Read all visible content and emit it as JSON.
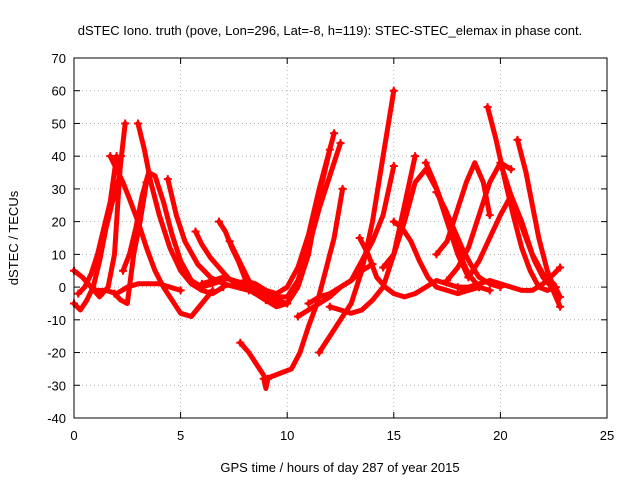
{
  "chart_data": {
    "type": "scatter",
    "title": "dSTEC Iono. truth (pove, Lon=296, Lat=-8, h=119): STEC-STEC_elemax in phase cont.",
    "xlabel": "GPS time / hours of day 287 of year 2015",
    "ylabel": "dSTEC  / TECUs",
    "xlim": [
      0,
      25
    ],
    "ylim": [
      -40,
      70
    ],
    "xticks": [
      0,
      5,
      10,
      15,
      20,
      25
    ],
    "yticks": [
      -40,
      -30,
      -20,
      -10,
      0,
      10,
      20,
      30,
      40,
      50,
      60,
      70
    ],
    "grid": true,
    "color": "#ff0000",
    "series": [
      {
        "x": [
          0.0,
          0.3,
          0.6,
          0.9,
          1.2,
          1.5,
          1.8,
          2.1,
          2.4
        ],
        "y": [
          -5,
          -7,
          -4,
          0,
          8,
          18,
          26,
          33,
          50
        ]
      },
      {
        "x": [
          0.2,
          0.5,
          0.8,
          1.1,
          1.4,
          1.7,
          2.0
        ],
        "y": [
          -2,
          0,
          4,
          10,
          18,
          26,
          40
        ]
      },
      {
        "x": [
          0.0,
          0.4,
          0.8,
          1.2,
          1.6,
          1.9,
          2.2
        ],
        "y": [
          5,
          3,
          0,
          -3,
          0,
          10,
          40
        ]
      },
      {
        "x": [
          1.7,
          2.0,
          2.3,
          2.6,
          3.0,
          3.4,
          3.8,
          4.2,
          4.6,
          5.0,
          5.5,
          6.0,
          6.5
        ],
        "y": [
          40,
          36,
          32,
          27,
          20,
          12,
          5,
          0,
          -4,
          -8,
          -9,
          -5,
          -1
        ]
      },
      {
        "x": [
          2.3,
          2.6,
          2.9,
          3.2,
          3.5,
          3.8,
          4.2,
          4.6,
          5.0,
          5.5,
          6.0,
          6.5,
          7.0
        ],
        "y": [
          5,
          10,
          18,
          28,
          35,
          34,
          26,
          16,
          8,
          2,
          0,
          1,
          2
        ]
      },
      {
        "x": [
          1.9,
          2.2,
          2.5,
          2.8,
          3.1,
          3.4
        ],
        "y": [
          -2,
          -4,
          -5,
          10,
          20,
          32
        ]
      },
      {
        "x": [
          3.0,
          3.3,
          3.6,
          4.0,
          4.5,
          5.0,
          5.5,
          6.0,
          6.5,
          7.0
        ],
        "y": [
          50,
          42,
          32,
          22,
          12,
          5,
          1,
          -1,
          -2,
          0
        ]
      },
      {
        "x": [
          4.4,
          4.8,
          5.2,
          5.8,
          6.4,
          7.0,
          7.6,
          8.2
        ],
        "y": [
          33,
          22,
          14,
          7,
          3,
          1,
          0,
          -1
        ]
      },
      {
        "x": [
          5.7,
          6.0,
          6.4,
          6.8,
          7.2,
          7.6,
          8.0,
          8.5,
          9.0
        ],
        "y": [
          17,
          13,
          9,
          6,
          3,
          1,
          0,
          -2,
          -4
        ]
      },
      {
        "x": [
          1.0,
          1.5,
          2.0,
          2.5,
          3.0,
          3.5,
          4.0,
          4.5,
          5.0
        ],
        "y": [
          -1,
          -1,
          -2,
          0,
          1,
          1,
          1,
          0,
          -1
        ]
      },
      {
        "x": [
          6.8,
          7.1,
          7.4,
          7.7,
          8.0,
          8.4,
          8.8,
          9.2,
          9.6
        ],
        "y": [
          20,
          17,
          12,
          8,
          3,
          0,
          -2,
          -3,
          -4
        ]
      },
      {
        "x": [
          7.3,
          7.6,
          7.9,
          8.2,
          8.6,
          9.0,
          9.4
        ],
        "y": [
          14,
          10,
          6,
          2,
          -1,
          -3,
          -5
        ]
      },
      {
        "x": [
          6.0,
          6.5,
          7.0,
          7.5,
          8.0,
          8.5,
          9.0,
          9.5,
          10.0
        ],
        "y": [
          1,
          2,
          3,
          2,
          1,
          0,
          -2,
          -4,
          -5
        ]
      },
      {
        "x": [
          7.8,
          8.2,
          8.6,
          9.0,
          9.4,
          9.8,
          10.2,
          10.6,
          11.0,
          11.4,
          11.8,
          12.2,
          12.6
        ],
        "y": [
          -17,
          -20,
          -24,
          -28,
          -27,
          -26,
          -25,
          -20,
          -12,
          -5,
          5,
          15,
          30
        ]
      },
      {
        "x": [
          8.9,
          9.0,
          9.1
        ],
        "y": [
          -28,
          -31,
          -28
        ]
      },
      {
        "x": [
          8.0,
          8.5,
          9.0,
          9.5,
          10.0,
          10.5,
          11.0,
          11.5,
          12.0
        ],
        "y": [
          0,
          -2,
          -4,
          -6,
          -5,
          0,
          10,
          28,
          42
        ]
      },
      {
        "x": [
          8.5,
          9.0,
          9.5,
          10.0,
          10.5,
          11.0,
          11.5,
          12.0,
          12.5
        ],
        "y": [
          -1,
          -2,
          -3,
          -3,
          2,
          12,
          24,
          34,
          44
        ]
      },
      {
        "x": [
          8.0,
          8.5,
          9.0,
          9.5,
          10.0,
          10.5,
          11.0,
          11.5,
          12.2
        ],
        "y": [
          2,
          1,
          -1,
          -2,
          0,
          6,
          16,
          30,
          47
        ]
      },
      {
        "x": [
          10.5,
          11.0,
          11.5,
          12.0,
          12.5,
          13.0,
          13.5,
          14.0
        ],
        "y": [
          -9,
          -7,
          -5,
          -3,
          0,
          2,
          5,
          7
        ]
      },
      {
        "x": [
          11.0,
          11.5,
          12.0,
          12.5,
          13.0,
          13.5,
          14.0,
          14.5,
          15.0
        ],
        "y": [
          -5,
          -3,
          -2,
          0,
          2,
          8,
          14,
          22,
          37
        ]
      },
      {
        "x": [
          11.5,
          12.0,
          12.5,
          13.0,
          13.5,
          14.0,
          14.5,
          15.0
        ],
        "y": [
          -20,
          -15,
          -10,
          -5,
          5,
          20,
          40,
          60
        ]
      },
      {
        "x": [
          12.0,
          12.5,
          13.0,
          13.5,
          14.0,
          14.5,
          15.0,
          15.5,
          16.0
        ],
        "y": [
          -6,
          -7,
          -8,
          -7,
          -4,
          0,
          10,
          25,
          40
        ]
      },
      {
        "x": [
          13.4,
          13.8,
          14.2,
          14.6,
          15.0,
          15.5,
          16.0,
          16.5,
          17.0,
          17.5,
          18.0,
          18.5,
          19.0
        ],
        "y": [
          15,
          10,
          3,
          0,
          -2,
          -3,
          -2,
          0,
          2,
          1,
          0,
          -1,
          0
        ]
      },
      {
        "x": [
          15.0,
          15.4,
          15.8,
          16.2,
          16.6,
          17.0,
          17.5,
          18.0,
          18.5,
          19.0
        ],
        "y": [
          20,
          18,
          14,
          8,
          3,
          0,
          -1,
          -2,
          -1,
          0
        ]
      },
      {
        "x": [
          14.5,
          15.0,
          15.5,
          16.0,
          16.5,
          17.0,
          17.5,
          18.0,
          18.5
        ],
        "y": [
          6,
          10,
          20,
          32,
          36,
          30,
          20,
          10,
          3
        ]
      },
      {
        "x": [
          16.5,
          16.9,
          17.3,
          17.7,
          18.1,
          18.5,
          19.0,
          19.5
        ],
        "y": [
          38,
          32,
          25,
          18,
          10,
          4,
          0,
          -1
        ]
      },
      {
        "x": [
          17.0,
          17.4,
          17.8,
          18.2,
          18.6,
          19.0,
          19.5,
          20.0
        ],
        "y": [
          29,
          24,
          18,
          12,
          7,
          3,
          1,
          0
        ]
      },
      {
        "x": [
          17.0,
          17.5,
          18.0,
          18.4,
          18.8,
          19.2,
          19.5
        ],
        "y": [
          10,
          14,
          24,
          32,
          38,
          32,
          22
        ]
      },
      {
        "x": [
          17.5,
          18.0,
          18.5,
          19.0,
          19.5,
          20.0,
          20.5
        ],
        "y": [
          2,
          6,
          12,
          22,
          32,
          38,
          36
        ]
      },
      {
        "x": [
          19.4,
          19.8,
          20.2,
          20.6,
          21.0,
          21.4,
          21.8,
          22.2,
          22.6
        ],
        "y": [
          55,
          45,
          33,
          22,
          12,
          5,
          0,
          -1,
          0
        ]
      },
      {
        "x": [
          20.0,
          20.4,
          20.8,
          21.2,
          21.6,
          22.0,
          22.4,
          22.8
        ],
        "y": [
          38,
          30,
          22,
          15,
          8,
          3,
          0,
          -6
        ]
      },
      {
        "x": [
          20.8,
          21.2,
          21.5,
          21.8,
          22.2,
          22.5
        ],
        "y": [
          45,
          35,
          25,
          15,
          5,
          0
        ]
      },
      {
        "x": [
          18.5,
          19.0,
          19.5,
          20.0,
          20.5,
          21.0,
          21.5,
          22.0,
          22.5,
          22.8
        ],
        "y": [
          3,
          8,
          15,
          22,
          28,
          20,
          10,
          4,
          1,
          -3
        ]
      },
      {
        "x": [
          18.0,
          18.5,
          19.0,
          19.5,
          20.0,
          20.5,
          21.0,
          21.5,
          22.0,
          22.5,
          22.8
        ],
        "y": [
          0,
          0,
          1,
          2,
          1,
          0,
          -1,
          -1,
          1,
          4,
          6
        ]
      }
    ]
  }
}
